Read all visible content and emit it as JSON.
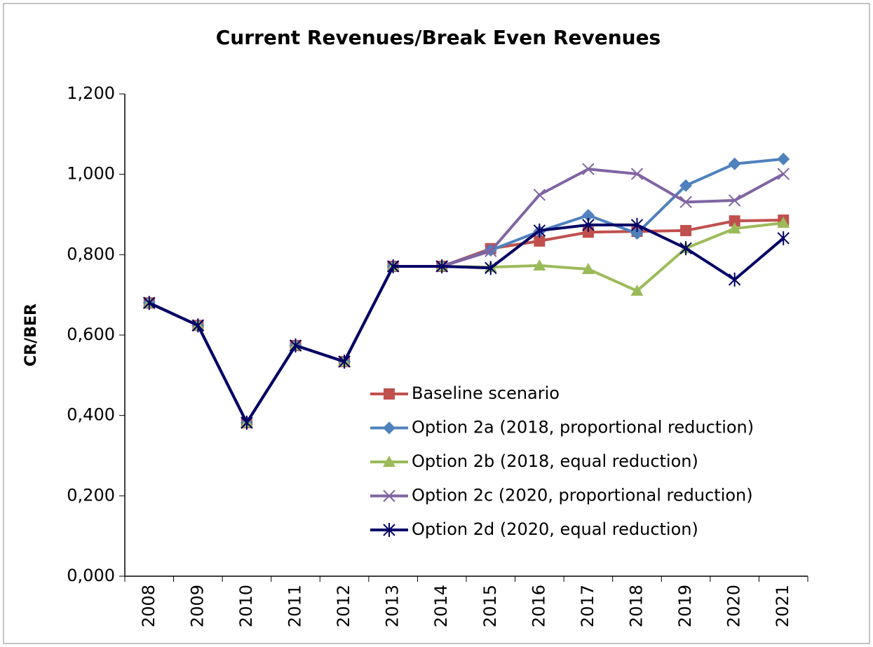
{
  "chart_data": {
    "type": "line",
    "title": "Current Revenues/Break Even Revenues",
    "y_label": "CR/BER",
    "categories": [
      "2008",
      "2009",
      "2010",
      "2011",
      "2012",
      "2013",
      "2014",
      "2015",
      "2016",
      "2017",
      "2018",
      "2019",
      "2020",
      "2021"
    ],
    "series": [
      {
        "name": "Baseline scenario",
        "color": "#c0504d",
        "marker": "square",
        "values": [
          0.68,
          0.624,
          0.382,
          0.574,
          0.534,
          0.771,
          0.771,
          0.815,
          0.834,
          0.856,
          0.858,
          0.86,
          0.884,
          0.886
        ]
      },
      {
        "name": "Option 2a (2018, proportional reduction)",
        "color": "#4f81bd",
        "marker": "diamond",
        "values": [
          0.68,
          0.624,
          0.382,
          0.574,
          0.534,
          0.771,
          0.771,
          0.811,
          0.858,
          0.898,
          0.853,
          0.972,
          1.026,
          1.038
        ]
      },
      {
        "name": "Option 2b (2018, equal reduction)",
        "color": "#9bbb59",
        "marker": "triangle",
        "values": [
          0.68,
          0.624,
          0.382,
          0.574,
          0.534,
          0.771,
          0.771,
          0.769,
          0.773,
          0.764,
          0.71,
          0.816,
          0.865,
          0.879
        ]
      },
      {
        "name": "Option 2c (2020, proportional reduction)",
        "color": "#8064a2",
        "marker": "x",
        "values": [
          0.68,
          0.624,
          0.382,
          0.574,
          0.534,
          0.771,
          0.771,
          0.809,
          0.949,
          1.013,
          1.001,
          0.931,
          0.935,
          1.001
        ]
      },
      {
        "name": "Option 2d (2020, equal reduction)",
        "color": "#000066",
        "marker": "star",
        "values": [
          0.68,
          0.624,
          0.382,
          0.574,
          0.534,
          0.771,
          0.771,
          0.767,
          0.86,
          0.874,
          0.874,
          0.816,
          0.738,
          0.841
        ]
      }
    ],
    "ylim": [
      0,
      1.2
    ],
    "yticks": [
      {
        "value": 0,
        "label": "0,000"
      },
      {
        "value": 0.2,
        "label": "0,200"
      },
      {
        "value": 0.4,
        "label": "0,400"
      },
      {
        "value": 0.6,
        "label": "0,600"
      },
      {
        "value": 0.8,
        "label": "0,800"
      },
      {
        "value": 1.0,
        "label": "1,000"
      },
      {
        "value": 1.2,
        "label": "1,200"
      }
    ],
    "grid": false
  }
}
